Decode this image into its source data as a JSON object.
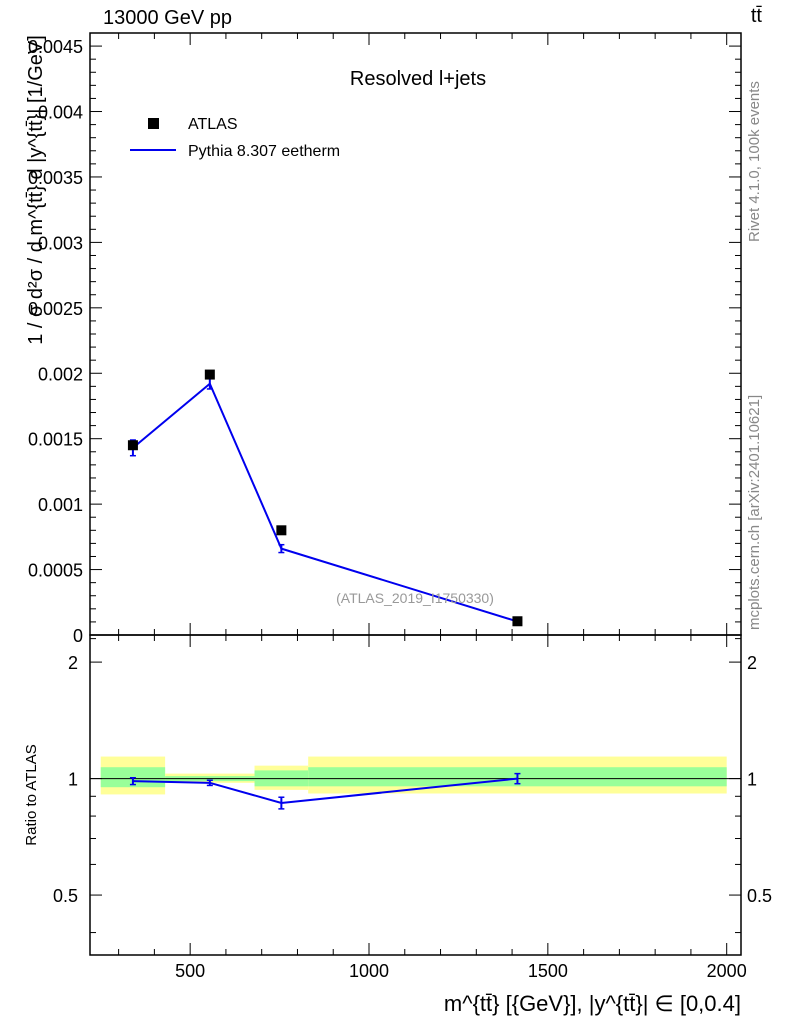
{
  "header": {
    "left": "13000 GeV pp",
    "right": "tt̄"
  },
  "side_labels": {
    "rivet": "Rivet 4.1.0,  100k events",
    "mcplots": "mcplots.cern.ch [arXiv:2401.10621]"
  },
  "chart_data": {
    "type": "scatter",
    "title": "Resolved l+jets",
    "watermark": "(ATLAS_2019_I1750330)",
    "xlabel": "m^{tt̄} [{GeV}], |y^{tt̄}| ∈ [0,0.4]",
    "xlim": [
      220,
      2040
    ],
    "x_ticks": [
      500,
      1000,
      1500,
      2000
    ],
    "main": {
      "ylabel": "1 / σ d²σ / d m^{tt̄} d |y^{tt̄}| [1/GeV]",
      "ylim": [
        0,
        0.0046
      ],
      "y_ticks": [
        {
          "v": 0,
          "label": "0"
        },
        {
          "v": 0.0005,
          "label": "0.0005"
        },
        {
          "v": 0.001,
          "label": "0.001"
        },
        {
          "v": 0.0015,
          "label": "0.0015"
        },
        {
          "v": 0.002,
          "label": "0.002"
        },
        {
          "v": 0.0025,
          "label": "0.0025"
        },
        {
          "v": 0.003,
          "label": "0.003"
        },
        {
          "v": 0.0035,
          "label": "0.0035"
        },
        {
          "v": 0.004,
          "label": "0.004"
        },
        {
          "v": 0.0045,
          "label": "0.0045"
        }
      ],
      "series": [
        {
          "name": "ATLAS",
          "kind": "data",
          "color": "#000000",
          "points": [
            {
              "x": 340,
              "y": 0.00145
            },
            {
              "x": 555,
              "y": 0.00199
            },
            {
              "x": 755,
              "y": 0.0008
            },
            {
              "x": 1415,
              "y": 0.000105
            }
          ]
        },
        {
          "name": "Pythia 8.307 eetherm",
          "kind": "mc",
          "color": "#0000ee",
          "points": [
            {
              "x": 340,
              "y": 0.00143,
              "err": 6e-05
            },
            {
              "x": 555,
              "y": 0.00192,
              "err": 4e-05
            },
            {
              "x": 755,
              "y": 0.00066,
              "err": 3e-05
            },
            {
              "x": 1415,
              "y": 0.000103,
              "err": 5e-06
            }
          ]
        }
      ]
    },
    "ratio": {
      "ylabel": "Ratio to ATLAS",
      "ylim": [
        0.35,
        2.35
      ],
      "scale": "log",
      "y_ticks": [
        {
          "v": 0.5,
          "label": "0.5"
        },
        {
          "v": 1,
          "label": "1"
        },
        {
          "v": 2,
          "label": "2"
        }
      ],
      "bands": [
        {
          "x0": 250,
          "x1": 430,
          "yellow": [
            0.91,
            1.14
          ],
          "green": [
            0.95,
            1.07
          ]
        },
        {
          "x0": 430,
          "x1": 680,
          "yellow": [
            0.975,
            1.03
          ],
          "green": [
            0.985,
            1.015
          ]
        },
        {
          "x0": 680,
          "x1": 830,
          "yellow": [
            0.935,
            1.08
          ],
          "green": [
            0.955,
            1.05
          ]
        },
        {
          "x0": 830,
          "x1": 2000,
          "yellow": [
            0.915,
            1.14
          ],
          "green": [
            0.955,
            1.07
          ]
        }
      ],
      "series": [
        {
          "name": "Pythia 8.307 eetherm / ATLAS",
          "color": "#0000ee",
          "points": [
            {
              "x": 340,
              "y": 0.985,
              "err": 0.02
            },
            {
              "x": 555,
              "y": 0.975,
              "err": 0.015
            },
            {
              "x": 755,
              "y": 0.865,
              "err": 0.03
            },
            {
              "x": 1415,
              "y": 1.0,
              "err": 0.03
            }
          ]
        }
      ]
    }
  }
}
